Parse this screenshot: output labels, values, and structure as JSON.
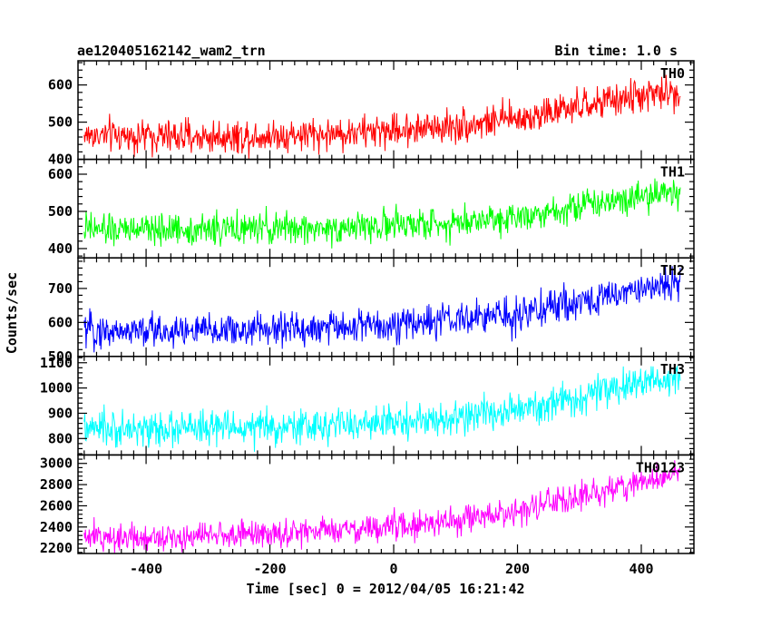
{
  "header": {
    "title": "ae120405162142_wam2_trn",
    "bin_time": "Bin time: 1.0 s"
  },
  "chart_data": {
    "type": "line",
    "xlabel": "Time [sec] 0 = 2012/04/05 16:21:42",
    "ylabel": "Counts/sec",
    "xlim": [
      -510,
      485
    ],
    "x_range": [
      -500,
      463
    ],
    "x_ticks": [
      -400,
      -200,
      0,
      200,
      400
    ],
    "grid": false,
    "panels": [
      {
        "name": "TH0",
        "color": "#ff0000",
        "ylim": [
          400,
          665
        ],
        "y_ticks": [
          400,
          500,
          600
        ],
        "trend": [
          [
            -500,
            465
          ],
          [
            -300,
            460
          ],
          [
            -100,
            468
          ],
          [
            100,
            490
          ],
          [
            200,
            510
          ],
          [
            300,
            540
          ],
          [
            400,
            572
          ],
          [
            463,
            580
          ]
        ],
        "noise": 32
      },
      {
        "name": "TH1",
        "color": "#00ff00",
        "ylim": [
          375,
          640
        ],
        "y_ticks": [
          400,
          500,
          600
        ],
        "trend": [
          [
            -500,
            450
          ],
          [
            -300,
            452
          ],
          [
            -100,
            455
          ],
          [
            100,
            470
          ],
          [
            200,
            488
          ],
          [
            300,
            515
          ],
          [
            400,
            545
          ],
          [
            463,
            550
          ]
        ],
        "noise": 30
      },
      {
        "name": "TH2",
        "color": "#0000ff",
        "ylim": [
          500,
          790
        ],
        "y_ticks": [
          500,
          600,
          700
        ],
        "trend": [
          [
            -500,
            575
          ],
          [
            -300,
            575
          ],
          [
            -100,
            585
          ],
          [
            100,
            605
          ],
          [
            200,
            625
          ],
          [
            300,
            660
          ],
          [
            400,
            700
          ],
          [
            463,
            715
          ]
        ],
        "noise": 36
      },
      {
        "name": "TH3",
        "color": "#00ffff",
        "ylim": [
          735,
          1125
        ],
        "y_ticks": [
          800,
          900,
          1000,
          1100
        ],
        "trend": [
          [
            -500,
            835
          ],
          [
            -300,
            840
          ],
          [
            -100,
            850
          ],
          [
            100,
            880
          ],
          [
            200,
            910
          ],
          [
            300,
            960
          ],
          [
            400,
            1020
          ],
          [
            463,
            1045
          ]
        ],
        "noise": 48
      },
      {
        "name": "TH0123",
        "color": "#ff00ff",
        "ylim": [
          2150,
          3080
        ],
        "y_ticks": [
          2200,
          2400,
          2600,
          2800,
          3000
        ],
        "trend": [
          [
            -500,
            2300
          ],
          [
            -300,
            2320
          ],
          [
            -100,
            2360
          ],
          [
            100,
            2450
          ],
          [
            200,
            2550
          ],
          [
            300,
            2680
          ],
          [
            400,
            2830
          ],
          [
            463,
            2900
          ]
        ],
        "noise": 95
      }
    ]
  }
}
